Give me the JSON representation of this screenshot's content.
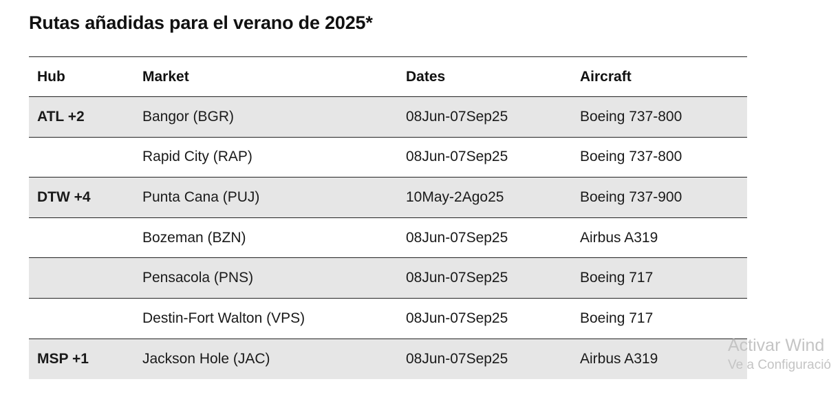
{
  "title": "Rutas añadidas para el verano de 2025*",
  "table": {
    "headers": {
      "hub": "Hub",
      "market": "Market",
      "dates": "Dates",
      "aircraft": "Aircraft"
    },
    "rows": [
      {
        "hub": "ATL +2",
        "market": "Bangor (BGR)",
        "dates": "08Jun-07Sep25",
        "aircraft": "Boeing 737-800"
      },
      {
        "hub": "",
        "market": "Rapid City (RAP)",
        "dates": "08Jun-07Sep25",
        "aircraft": "Boeing 737-800"
      },
      {
        "hub": "DTW +4",
        "market": "Punta Cana (PUJ)",
        "dates": "10May-2Ago25",
        "aircraft": "Boeing 737-900"
      },
      {
        "hub": "",
        "market": "Bozeman (BZN)",
        "dates": "08Jun-07Sep25",
        "aircraft": "Airbus A319"
      },
      {
        "hub": "",
        "market": "Pensacola (PNS)",
        "dates": "08Jun-07Sep25",
        "aircraft": "Boeing 717"
      },
      {
        "hub": "",
        "market": "Destin-Fort Walton (VPS)",
        "dates": "08Jun-07Sep25",
        "aircraft": "Boeing 717"
      },
      {
        "hub": "MSP +1",
        "market": "Jackson Hole (JAC)",
        "dates": "08Jun-07Sep25",
        "aircraft": "Airbus A319"
      }
    ]
  },
  "watermark": {
    "line1": "Activar Wind",
    "line2": "Ve a Configuració"
  },
  "colors": {
    "shaded_row": "#e6e6e6",
    "text": "#111111",
    "watermark": "#c4c4c4"
  }
}
